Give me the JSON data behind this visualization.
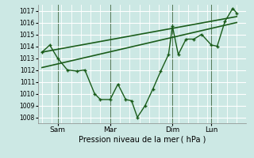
{
  "xlabel": "Pression niveau de la mer ( hPa )",
  "bg_color": "#cce8e4",
  "grid_color": "#b0d8d4",
  "line_color": "#1a5c1a",
  "ylim": [
    1007.5,
    1017.5
  ],
  "yticks": [
    1008,
    1009,
    1010,
    1011,
    1012,
    1013,
    1014,
    1015,
    1016,
    1017
  ],
  "xtick_labels": [
    "Sam",
    "Mar",
    "Dim",
    "Lun"
  ],
  "xtick_positions": [
    0.08,
    0.35,
    0.67,
    0.87
  ],
  "vline_positions": [
    0.08,
    0.35,
    0.67,
    0.87
  ],
  "zigzag_x": [
    0.0,
    0.04,
    0.08,
    0.13,
    0.18,
    0.22,
    0.27,
    0.3,
    0.35,
    0.39,
    0.43,
    0.46,
    0.49,
    0.53,
    0.57,
    0.61,
    0.65,
    0.67,
    0.7,
    0.74,
    0.78,
    0.82,
    0.87,
    0.9,
    0.94,
    0.98,
    1.0
  ],
  "zigzag_y": [
    1013.5,
    1014.1,
    1013.0,
    1012.0,
    1011.9,
    1012.0,
    1010.0,
    1009.5,
    1009.5,
    1010.8,
    1009.5,
    1009.4,
    1008.0,
    1009.0,
    1010.4,
    1011.9,
    1013.3,
    1015.7,
    1013.3,
    1014.6,
    1014.6,
    1015.0,
    1014.1,
    1014.0,
    1016.1,
    1017.2,
    1016.8
  ],
  "trend1_x": [
    0.0,
    1.0
  ],
  "trend1_y": [
    1013.5,
    1016.5
  ],
  "trend2_x": [
    0.0,
    1.0
  ],
  "trend2_y": [
    1012.2,
    1016.0
  ],
  "xlim": [
    -0.02,
    1.05
  ]
}
